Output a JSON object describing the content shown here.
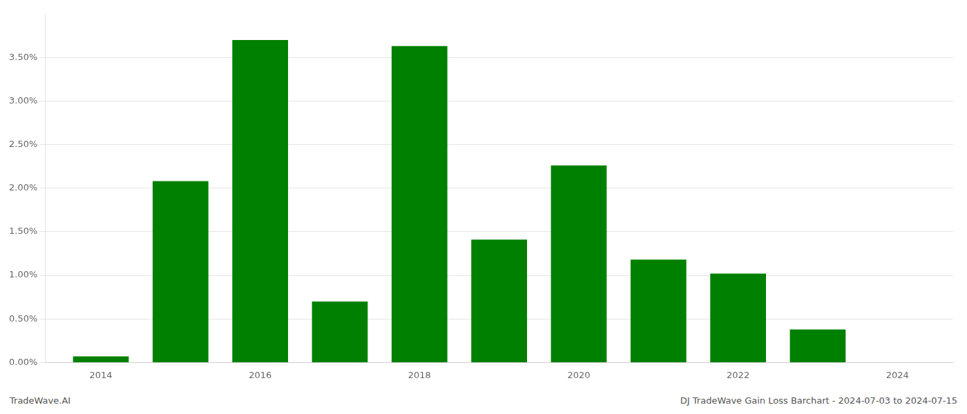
{
  "chart_data": {
    "type": "bar",
    "x": [
      2014,
      2015,
      2016,
      2017,
      2018,
      2019,
      2020,
      2021,
      2022,
      2023
    ],
    "values": [
      0.07,
      2.08,
      3.7,
      0.7,
      3.63,
      1.41,
      2.26,
      1.18,
      1.02,
      0.38
    ],
    "color": "#008000",
    "xlim": [
      2013.3,
      2024.7
    ],
    "xticks": [
      2014,
      2016,
      2018,
      2020,
      2022,
      2024
    ],
    "ylim": [
      0,
      4.0
    ],
    "yticks": [
      {
        "value": 0.0,
        "label": "0.00%"
      },
      {
        "value": 0.5,
        "label": "0.50%"
      },
      {
        "value": 1.0,
        "label": "1.00%"
      },
      {
        "value": 1.5,
        "label": "1.50%"
      },
      {
        "value": 2.0,
        "label": "2.00%"
      },
      {
        "value": 2.5,
        "label": "2.50%"
      },
      {
        "value": 3.0,
        "label": "3.00%"
      },
      {
        "value": 3.5,
        "label": "3.50%"
      }
    ],
    "grid": "y",
    "annotations": [
      "TradeWave.AI",
      "DJ TradeWave Gain Loss Barchart - 2024-07-03 to 2024-07-15"
    ]
  }
}
